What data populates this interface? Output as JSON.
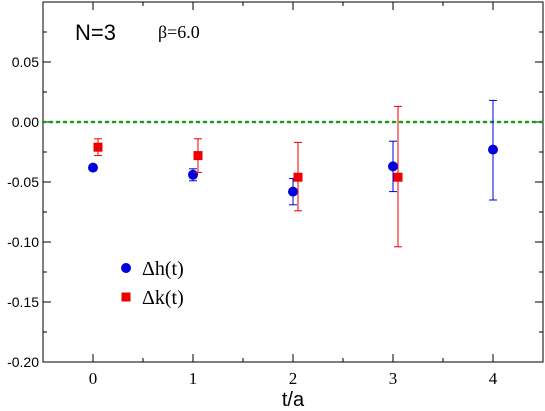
{
  "chart_data": {
    "type": "scatter",
    "title": "N=3",
    "subtitle": "β=6.0",
    "xlabel": "t/a",
    "ylabel": "",
    "xlim": [
      -0.5,
      4.5
    ],
    "ylim": [
      -0.2,
      0.1
    ],
    "xticks": [
      0,
      1,
      2,
      3,
      4
    ],
    "xtick_labels": [
      "0",
      "1",
      "2",
      "3",
      "4"
    ],
    "yticks": [
      -0.2,
      -0.15,
      -0.1,
      -0.05,
      0.0,
      0.05
    ],
    "ytick_labels": [
      "-0.20",
      "-0.15",
      "-0.10",
      "-0.05",
      "0.00",
      "0.05"
    ],
    "grid": false,
    "legend_position": "lower-left",
    "reference_line": {
      "y": 0.0,
      "style": "dotted",
      "color": "#1a9a1a"
    },
    "series": [
      {
        "name": "Δh(t)",
        "marker": "circle",
        "color": "#0000dd",
        "x": [
          0,
          1,
          2,
          3,
          4
        ],
        "y": [
          -0.038,
          -0.044,
          -0.058,
          -0.037,
          -0.023
        ],
        "yerr_low": [
          0.001,
          0.005,
          0.011,
          0.021,
          0.042
        ],
        "yerr_high": [
          0.001,
          0.005,
          0.011,
          0.021,
          0.041
        ]
      },
      {
        "name": "Δk(t)",
        "marker": "square",
        "color": "#ee0000",
        "x": [
          0.05,
          1.05,
          2.05,
          3.05
        ],
        "y": [
          -0.021,
          -0.028,
          -0.046,
          -0.046
        ],
        "yerr_low": [
          0.007,
          0.014,
          0.028,
          0.058
        ],
        "yerr_high": [
          0.007,
          0.014,
          0.029,
          0.059
        ]
      }
    ]
  }
}
